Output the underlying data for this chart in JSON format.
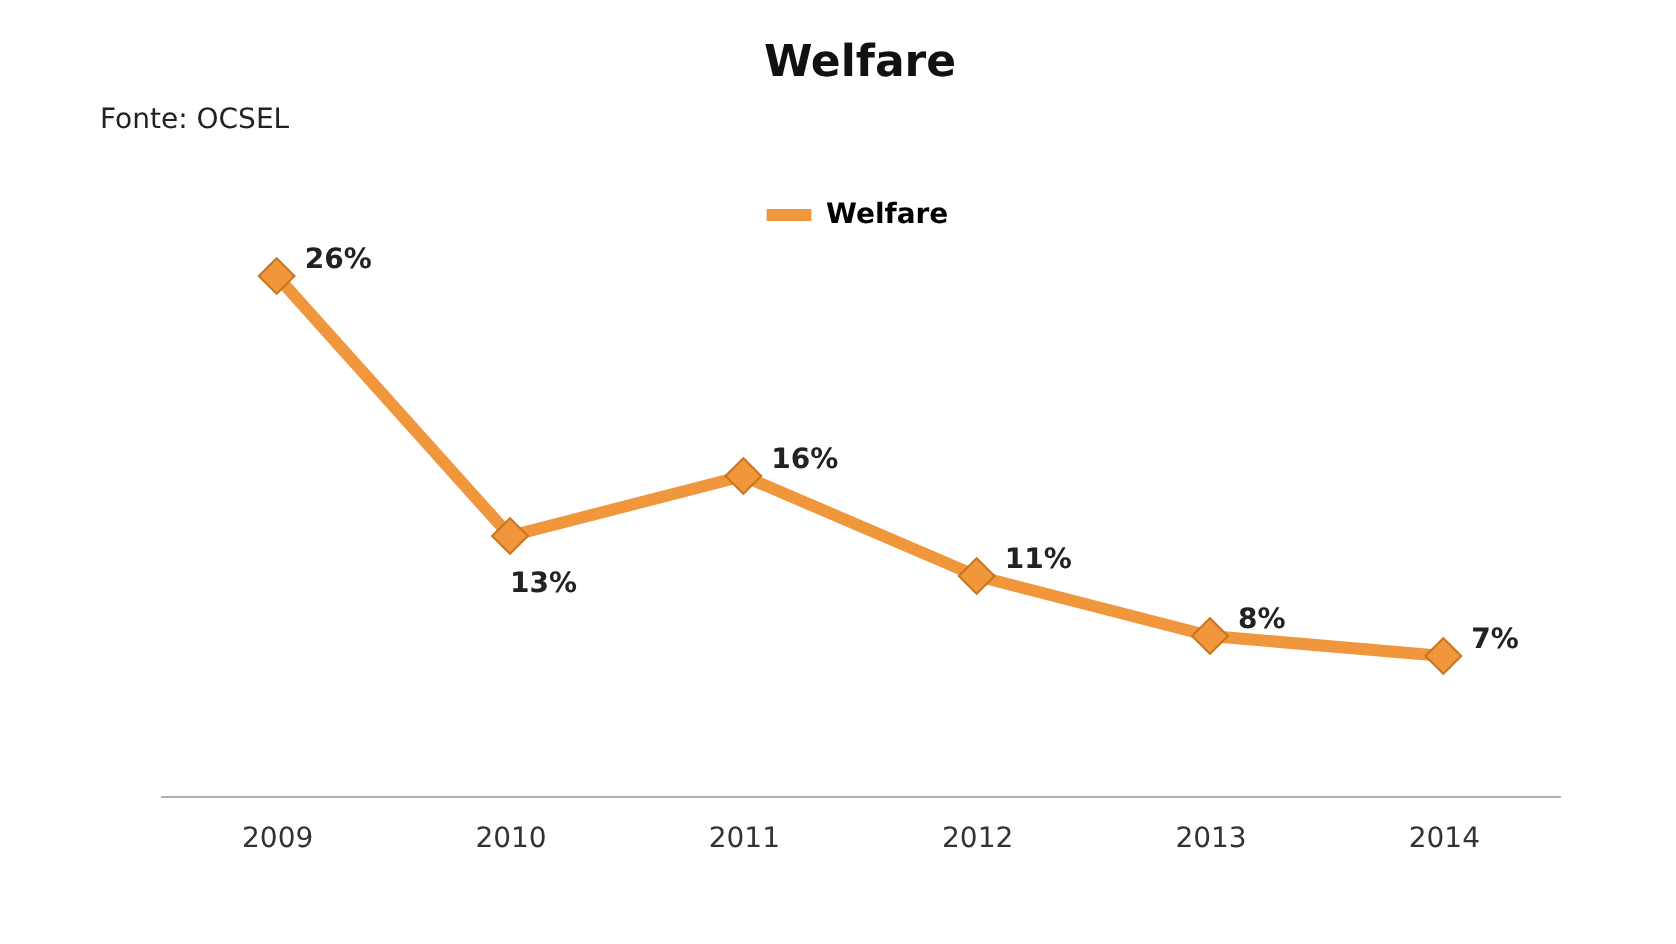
{
  "chart_data": {
    "type": "line",
    "title": "Welfare",
    "annotations": [
      "Fonte: OCSEL"
    ],
    "categories": [
      "2009",
      "2010",
      "2011",
      "2012",
      "2013",
      "2014"
    ],
    "series": [
      {
        "name": "Welfare",
        "color": "#f0963c",
        "values": [
          26,
          13,
          16,
          11,
          8,
          7
        ],
        "value_labels": [
          "26%",
          "13%",
          "16%",
          "11%",
          "8%",
          "7%"
        ]
      }
    ],
    "legend": "top",
    "marker": "diamond",
    "line_style": "solid"
  }
}
